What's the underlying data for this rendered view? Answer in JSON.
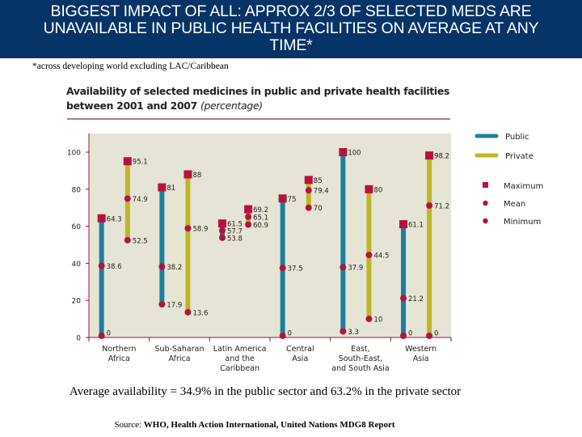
{
  "header": {
    "title_lines": [
      "BIGGEST IMPACT OF ALL: APPROX 2/3 OF SELECTED MEDS ARE",
      "UNAVAILABLE IN PUBLIC HEALTH FACILITIES ON AVERAGE AT ANY",
      "TIME*"
    ]
  },
  "footnote": "*across developing world excluding LAC/Caribbean",
  "summary": "Average availability = 34.9% in the public sector and 63.2% in the private sector",
  "source": {
    "prefix": "Source: ",
    "text": "WHO, Health Action International, United Nations MDG8 Report"
  },
  "colors": {
    "header_bg": "#073466",
    "plot_bg": "#e6e4d4",
    "public": "#1c7fa0",
    "private": "#bdb527",
    "marker": "#b5123e",
    "axis": "#8a1b3c"
  },
  "chart_data": {
    "type": "range-bar",
    "title": "Availability of selected medicines in public and private health facilities between 2001 and 2007",
    "title_suffix": "(percentage)",
    "title_line1": "Availability of selected medicines in public and private health facilities",
    "title_line2": "between 2001 and 2007 ",
    "xlabel": "",
    "ylabel": "",
    "ylim": [
      0,
      110
    ],
    "yticks": [
      0,
      20,
      40,
      60,
      80,
      100
    ],
    "grid": false,
    "legend_position": "right",
    "categories": [
      [
        "Northern",
        "Africa"
      ],
      [
        "Sub-Saharan",
        "Africa"
      ],
      [
        "Latin America",
        "and the",
        "Caribbean"
      ],
      [
        "Central",
        "Asia"
      ],
      [
        "East,",
        "South-East,",
        "and South Asia"
      ],
      [
        "Western",
        "Asia"
      ]
    ],
    "series": [
      {
        "name": "Public",
        "max": [
          64.3,
          81,
          61.5,
          75,
          100,
          61.1
        ],
        "mean": [
          38.6,
          38.2,
          57.7,
          37.5,
          37.9,
          21.2
        ],
        "min": [
          0,
          17.9,
          53.8,
          0,
          3.3,
          0
        ],
        "labels_max": [
          "64.3",
          "81",
          "61.5",
          "75",
          "100",
          "61.1"
        ],
        "labels_mean": [
          "38.6",
          "38.2",
          "57.7",
          "37.5",
          "37.9",
          "21.2"
        ],
        "labels_min": [
          "0",
          "17.9",
          "53.8",
          "0",
          "3.3",
          "0"
        ]
      },
      {
        "name": "Private",
        "max": [
          95.1,
          88,
          69.2,
          85,
          80,
          98.2
        ],
        "mean": [
          74.9,
          58.9,
          65.1,
          79.4,
          44.5,
          71.2
        ],
        "min": [
          52.5,
          13.6,
          60.9,
          70,
          10,
          0
        ],
        "labels_max": [
          "95.1",
          "88",
          "69.2",
          "85",
          "80",
          "98.2"
        ],
        "labels_mean": [
          "74.9",
          "58.9",
          "65.1",
          "79.4",
          "44.5",
          "71.2"
        ],
        "labels_min": [
          "52.5",
          "13.6",
          "60.9",
          "70",
          "10",
          "0"
        ]
      }
    ],
    "legend": {
      "series": [
        "Public",
        "Private"
      ],
      "markers": [
        "Maximum",
        "Mean",
        "Minimum"
      ]
    }
  }
}
